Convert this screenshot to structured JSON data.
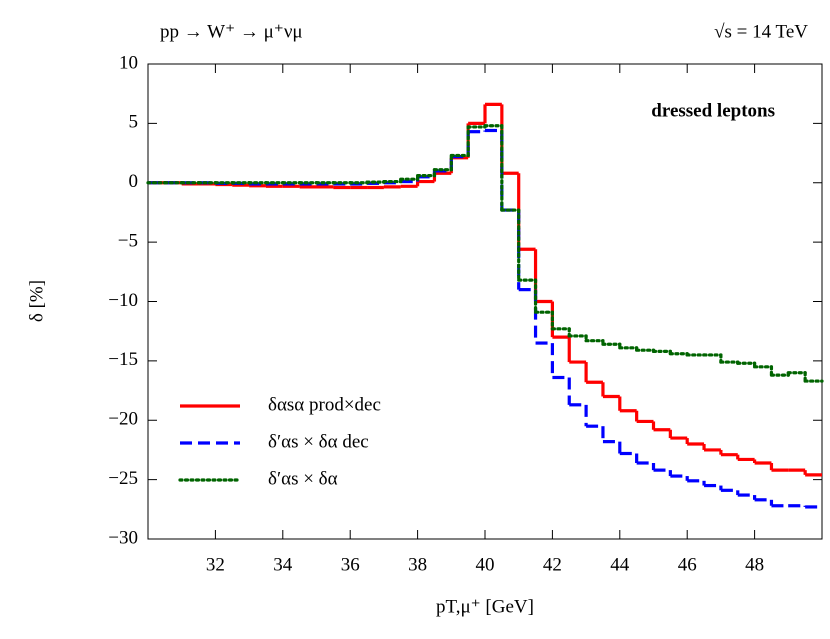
{
  "chart_data": {
    "type": "histogram",
    "title": "pp → W⁺ → μ⁺νμ",
    "subtitle": "√s = 14 TeV",
    "annotation": "dressed leptons",
    "x_label": "pT,μ⁺ [GeV]",
    "y_label": "δ [%]",
    "xlim": [
      30,
      50
    ],
    "ylim": [
      -30,
      10
    ],
    "xticks": [
      32,
      34,
      36,
      38,
      40,
      42,
      44,
      46,
      48
    ],
    "yticks": [
      {
        "value": -30,
        "label": "−30"
      },
      {
        "value": -25,
        "label": "−25"
      },
      {
        "value": -20,
        "label": "−20"
      },
      {
        "value": -15,
        "label": "−15"
      },
      {
        "value": -10,
        "label": "−10"
      },
      {
        "value": -5,
        "label": "−5"
      },
      0,
      5,
      10
    ],
    "legend": "lower left",
    "bins": [
      30,
      30.5,
      31,
      31.5,
      32,
      32.5,
      33,
      33.5,
      34,
      34.5,
      35,
      35.5,
      36,
      36.5,
      37,
      37.5,
      38,
      38.5,
      39,
      39.5,
      40,
      40.5,
      41,
      41.5,
      42,
      42.5,
      43,
      43.5,
      44,
      44.5,
      45,
      45.5,
      46,
      46.5,
      47,
      47.5,
      48,
      48.5,
      49,
      49.5,
      50
    ],
    "series": [
      {
        "name": "δαsα prod×dec",
        "color": "#ff0000",
        "dash": "solid",
        "values": [
          0,
          0,
          -0.1,
          -0.1,
          -0.15,
          -0.2,
          -0.25,
          -0.3,
          -0.3,
          -0.35,
          -0.35,
          -0.4,
          -0.4,
          -0.4,
          -0.35,
          -0.3,
          0.1,
          0.8,
          2.1,
          5.0,
          6.6,
          0.8,
          -5.6,
          -10.0,
          -13.0,
          -15.1,
          -16.8,
          -18.0,
          -19.2,
          -20.1,
          -20.8,
          -21.5,
          -22.0,
          -22.5,
          -22.9,
          -23.3,
          -23.6,
          -24.2,
          -24.2,
          -24.6
        ]
      },
      {
        "name": "δ′αs × δα dec",
        "color": "#0000ff",
        "dash": "dashed",
        "values": [
          0,
          0,
          0,
          0,
          -0.05,
          -0.05,
          -0.1,
          -0.1,
          -0.1,
          -0.1,
          -0.1,
          -0.1,
          -0.1,
          -0.05,
          0,
          0.1,
          0.5,
          1.0,
          2.2,
          4.3,
          4.4,
          -2.3,
          -9.0,
          -13.5,
          -16.4,
          -18.7,
          -20.5,
          -21.8,
          -22.8,
          -23.6,
          -24.2,
          -24.7,
          -25.1,
          -25.5,
          -25.9,
          -26.3,
          -26.7,
          -27.2,
          -27.2,
          -27.3
        ]
      },
      {
        "name": "δ′αs × δα",
        "color": "#006400",
        "dash": "dotted",
        "values": [
          0,
          0,
          0,
          0,
          0,
          0,
          0,
          0,
          0,
          0,
          0,
          0,
          0,
          0.05,
          0.1,
          0.3,
          0.6,
          1.1,
          2.3,
          4.7,
          4.8,
          -2.3,
          -8.2,
          -10.9,
          -12.3,
          -12.9,
          -13.3,
          -13.6,
          -13.9,
          -14.1,
          -14.2,
          -14.4,
          -14.5,
          -14.5,
          -15.1,
          -15.2,
          -15.5,
          -16.2,
          -16.0,
          -16.7
        ]
      }
    ]
  }
}
